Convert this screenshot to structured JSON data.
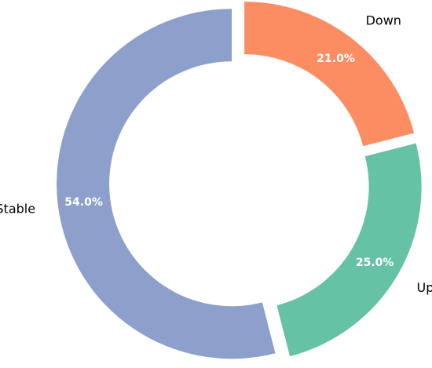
{
  "chart_data": {
    "type": "pie",
    "variant": "donut",
    "title": "",
    "categories": [
      "Down",
      "Up",
      "Stable"
    ],
    "values": [
      21.0,
      25.0,
      54.0
    ],
    "value_labels": [
      "21.0%",
      "25.0%",
      "54.0%"
    ],
    "colors": [
      "#fc8d62",
      "#66c2a5",
      "#8da0cb"
    ],
    "legend": "none",
    "start": "top",
    "direction": "clockwise",
    "slice_separation": "exploded"
  }
}
